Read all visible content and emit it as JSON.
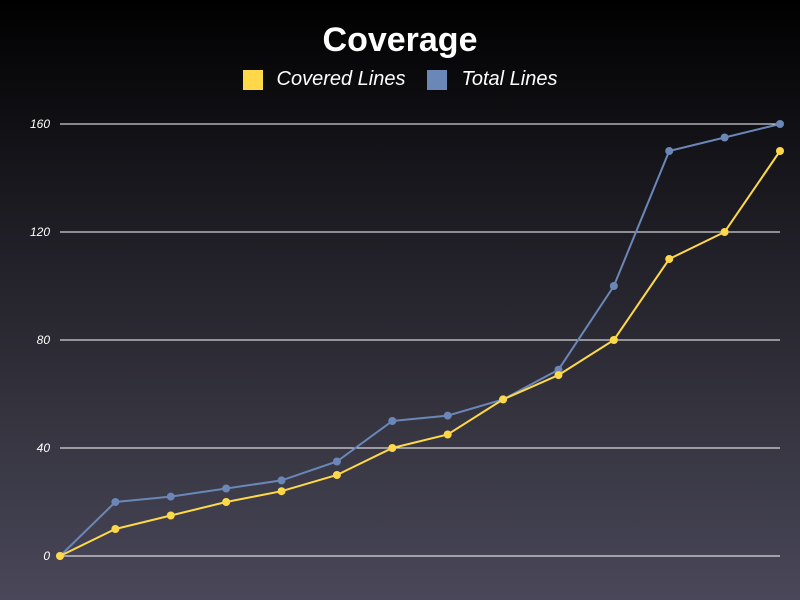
{
  "chart_data": {
    "type": "line",
    "title": "Coverage",
    "xlabel": "",
    "ylabel": "",
    "x": [
      0,
      1,
      2,
      3,
      4,
      5,
      6,
      7,
      8,
      9,
      10,
      11,
      12,
      13
    ],
    "ylim": [
      0,
      160
    ],
    "yticks": [
      0,
      40,
      80,
      120,
      160
    ],
    "grid": true,
    "legend_position": "top-center",
    "series": [
      {
        "name": "Covered Lines",
        "color": "#ffd84a",
        "values": [
          0,
          10,
          15,
          20,
          24,
          30,
          40,
          45,
          58,
          67,
          80,
          110,
          120,
          150
        ]
      },
      {
        "name": "Total Lines",
        "color": "#6a87b8",
        "values": [
          0,
          20,
          22,
          25,
          28,
          35,
          50,
          52,
          58,
          69,
          100,
          150,
          155,
          160
        ]
      }
    ]
  }
}
